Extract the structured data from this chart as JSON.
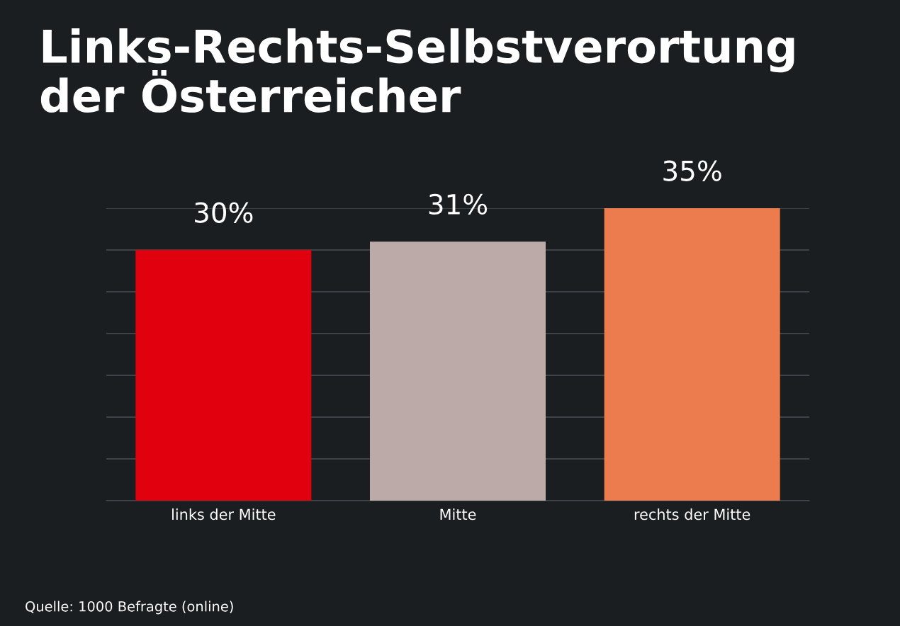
{
  "chart_data": {
    "type": "bar",
    "title": "Links-Rechts-Selbstverortung\nder Österreicher",
    "categories": [
      "links der Mitte",
      "Mitte",
      "rechts der Mitte"
    ],
    "values": [
      30,
      31,
      35
    ],
    "colors": [
      "#e0000e",
      "#bcaaa9",
      "#ec7b4d"
    ],
    "value_labels": [
      "30%",
      "31%",
      "35%"
    ],
    "ylim": [
      0,
      35
    ],
    "yticks": [
      {
        "value": 0,
        "label": null
      },
      {
        "value": 5,
        "label": null
      },
      {
        "value": 10,
        "label": null
      },
      {
        "value": 15,
        "label": null
      },
      {
        "value": 20,
        "label": null
      },
      {
        "value": 25,
        "label": null
      },
      {
        "value": 30,
        "label": null
      },
      {
        "value": 35,
        "label": null
      }
    ],
    "grid": "y",
    "annotations": [
      "Quelle: 1000 Befragte (online)"
    ]
  }
}
